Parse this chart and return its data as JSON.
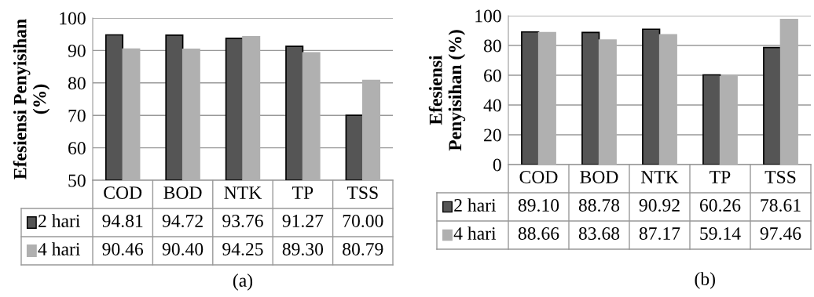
{
  "chart_data": [
    {
      "type": "bar",
      "ylabel": "Efesiensi Penyisihan\n(%)",
      "categories": [
        "COD",
        "BOD",
        "NTK",
        "TP",
        "TSS"
      ],
      "series": [
        {
          "name": "2 hari",
          "color": "#555555",
          "values": [
            94.81,
            94.72,
            93.76,
            91.27,
            70.0
          ],
          "value_labels": [
            "94.81",
            "94.72",
            "93.76",
            "91.27",
            "70.00"
          ]
        },
        {
          "name": "4 hari",
          "color": "#b0b0b0",
          "values": [
            90.46,
            90.4,
            94.25,
            89.3,
            80.79
          ],
          "value_labels": [
            "90.46",
            "90.40",
            "94.25",
            "89.30",
            "80.79"
          ]
        }
      ],
      "ylim": [
        50,
        100
      ],
      "yticks": [
        50,
        60,
        70,
        80,
        90,
        100
      ],
      "grid": "y",
      "legend": "bottom",
      "annotations": [
        "(a)"
      ]
    },
    {
      "type": "bar",
      "ylabel": "Efesiensi\nPenyisihan (%)",
      "categories": [
        "COD",
        "BOD",
        "NTK",
        "TP",
        "TSS"
      ],
      "series": [
        {
          "name": "2 hari",
          "color": "#555555",
          "values": [
            89.1,
            88.78,
            90.92,
            60.26,
            78.61
          ],
          "value_labels": [
            "89.10",
            "88.78",
            "90.92",
            "60.26",
            "78.61"
          ]
        },
        {
          "name": "4 hari",
          "color": "#b0b0b0",
          "values": [
            88.66,
            83.68,
            87.17,
            59.14,
            97.46
          ],
          "value_labels": [
            "88.66",
            "83.68",
            "87.17",
            "59.14",
            "97.46"
          ]
        }
      ],
      "ylim": [
        0,
        100
      ],
      "yticks": [
        0,
        20,
        40,
        60,
        80,
        100
      ],
      "grid": "y",
      "legend": "bottom",
      "annotations": [
        "(b)"
      ]
    }
  ]
}
